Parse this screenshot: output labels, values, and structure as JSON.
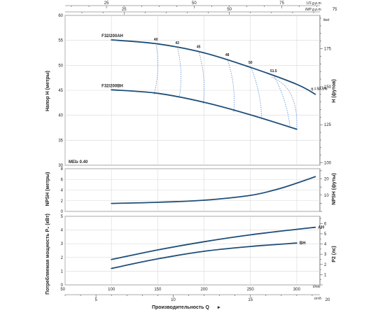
{
  "chart_data": {
    "type": "line",
    "title": "",
    "x_bottom": {
      "label": "Производительность Q",
      "unit": "l/min",
      "range": [
        50,
        325
      ],
      "ticks": [
        50,
        100,
        150,
        200,
        250,
        300
      ],
      "secondary": {
        "unit": "m³/h",
        "range": [
          3,
          19.5
        ],
        "ticks": [
          5,
          10,
          15,
          20
        ]
      }
    },
    "x_top": {
      "unit": "US g.p.m.",
      "unit2": "IMP g.p.m.",
      "us_ticks": [
        25,
        50,
        75
      ],
      "imp_ticks": [
        25,
        50,
        75
      ]
    },
    "head_panel": {
      "ylabel": "Напор H (метры)",
      "ylabel_right": "H (футов)",
      "right_unit": "feet",
      "ylim": [
        30,
        60
      ],
      "ticks": [
        30,
        35,
        40,
        45,
        50,
        55,
        60
      ],
      "right_ticks": [
        100,
        125,
        150,
        175
      ],
      "annotation": "MEI≥ 0.40",
      "series": [
        {
          "name": "F32/200AH",
          "x": [
            100,
            150,
            200,
            250,
            300,
            320
          ],
          "y": [
            55.1,
            54.3,
            52.5,
            49.6,
            46.2,
            44.2
          ]
        },
        {
          "name": "F32/200BH",
          "x": [
            100,
            150,
            200,
            250,
            300
          ],
          "y": [
            45.1,
            44.4,
            42.6,
            40.1,
            37.2
          ]
        }
      ],
      "efficiency_labels": [
        "40",
        "43",
        "45",
        "48",
        "50",
        "51.5",
        "η = 53.5%"
      ],
      "efficiency_x": [
        148,
        171,
        194,
        225,
        250,
        275,
        320
      ],
      "efficiency_y": [
        54.4,
        53.7,
        52.9,
        51.3,
        49.8,
        48.1,
        44.2
      ]
    },
    "npsh_panel": {
      "ylabel": "NPSH (метры)",
      "ylabel_right": "NPSH (футы)",
      "ylim": [
        0,
        8
      ],
      "ticks": [
        0,
        2,
        4,
        6,
        8
      ],
      "right_ticks": [
        10,
        20
      ],
      "series": [
        {
          "name": "",
          "x": [
            100,
            150,
            200,
            250,
            280,
            300,
            320
          ],
          "y": [
            1.5,
            1.7,
            2.1,
            3.0,
            4.2,
            5.3,
            6.5
          ]
        }
      ]
    },
    "power_panel": {
      "ylabel": "Потребляемая мощность P₂ (кВт)",
      "ylabel_right": "P2 (лс)",
      "ylim": [
        0,
        5
      ],
      "ticks": [
        0,
        1,
        2,
        3,
        4,
        5
      ],
      "right_ticks": [
        1,
        2,
        3,
        4,
        5,
        6
      ],
      "series": [
        {
          "name": "AH",
          "x": [
            100,
            150,
            200,
            250,
            300,
            320
          ],
          "y": [
            1.85,
            2.55,
            3.15,
            3.65,
            4.05,
            4.2
          ]
        },
        {
          "name": "BH",
          "x": [
            100,
            150,
            200,
            250,
            300
          ],
          "y": [
            1.2,
            1.9,
            2.45,
            2.8,
            3.05
          ]
        }
      ]
    }
  }
}
